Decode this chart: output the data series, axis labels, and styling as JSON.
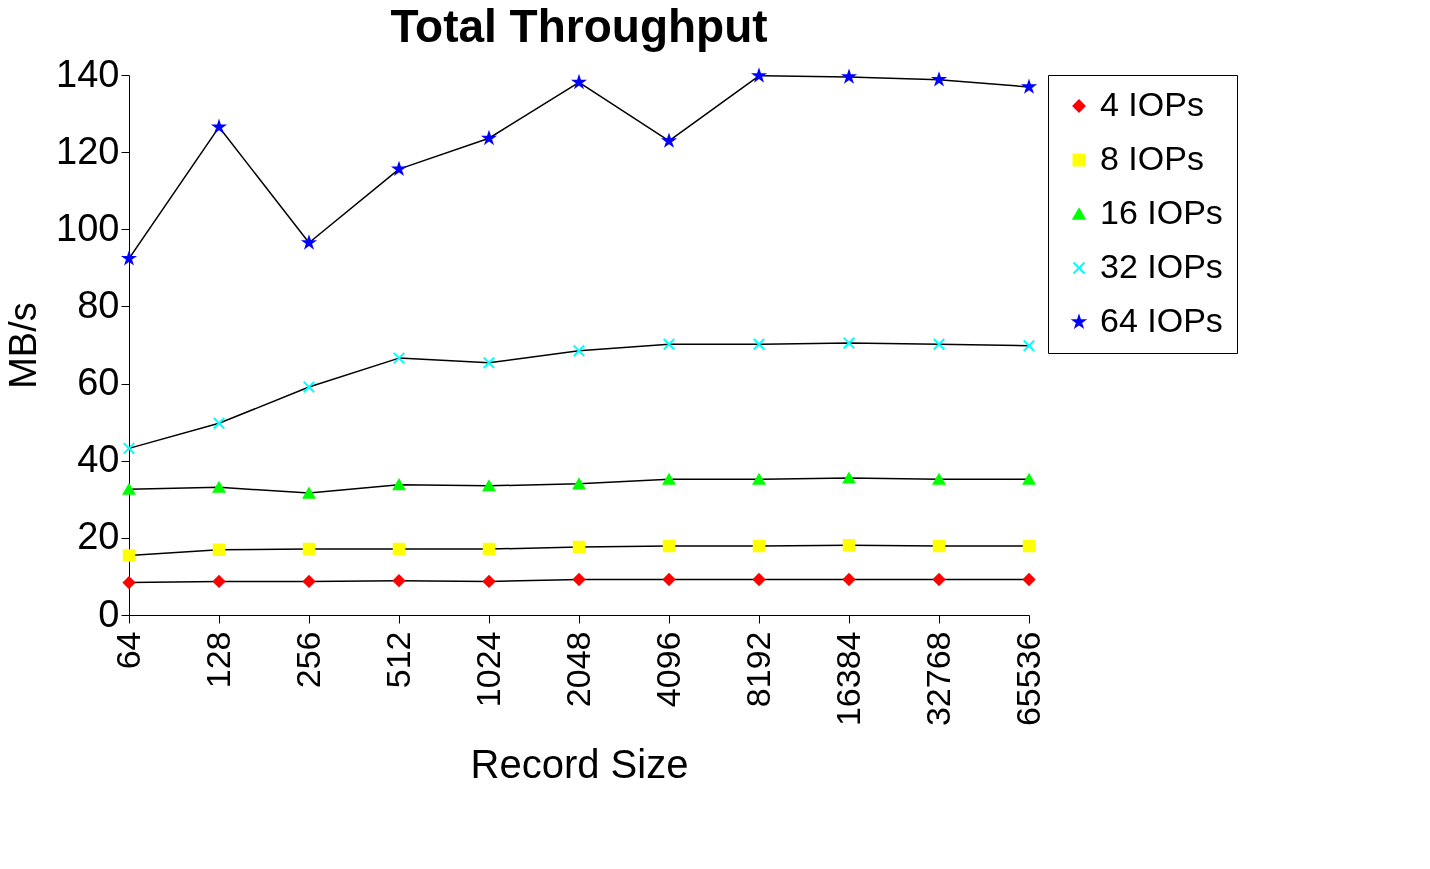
{
  "chart_data": {
    "type": "line",
    "title": "Total Throughput",
    "xlabel": "Record Size",
    "ylabel": "MB/s",
    "categories": [
      "64",
      "128",
      "256",
      "512",
      "1024",
      "2048",
      "4096",
      "8192",
      "16384",
      "32768",
      "65536"
    ],
    "series": [
      {
        "name": "4 IOPs",
        "color": "#ff0000",
        "marker": "diamond",
        "values": [
          8.4,
          8.7,
          8.7,
          8.9,
          8.7,
          9.2,
          9.2,
          9.2,
          9.2,
          9.2,
          9.2
        ]
      },
      {
        "name": "8 IOPs",
        "color": "#ffff00",
        "marker": "square",
        "values": [
          15.4,
          16.9,
          17.1,
          17.1,
          17.1,
          17.6,
          17.9,
          17.9,
          18.1,
          17.9,
          17.9
        ]
      },
      {
        "name": "16 IOPs",
        "color": "#00ff00",
        "marker": "triangle",
        "values": [
          32.6,
          33.1,
          31.6,
          33.8,
          33.5,
          34.0,
          35.2,
          35.2,
          35.5,
          35.2,
          35.2
        ]
      },
      {
        "name": "32 IOPs",
        "color": "#00ffff",
        "marker": "cross",
        "values": [
          43.2,
          49.7,
          59.1,
          66.6,
          65.4,
          68.5,
          70.2,
          70.2,
          70.5,
          70.2,
          69.8
        ]
      },
      {
        "name": "64 IOPs",
        "color": "#0000ff",
        "marker": "star",
        "values": [
          92.4,
          126.5,
          96.5,
          115.6,
          123.6,
          138.1,
          122.9,
          139.8,
          139.5,
          138.8,
          136.9
        ]
      }
    ],
    "ylim": [
      0,
      140
    ],
    "yticks": [
      0,
      20,
      40,
      60,
      80,
      100,
      120,
      140
    ],
    "grid": false,
    "legend": "right",
    "line_style": "solid"
  }
}
